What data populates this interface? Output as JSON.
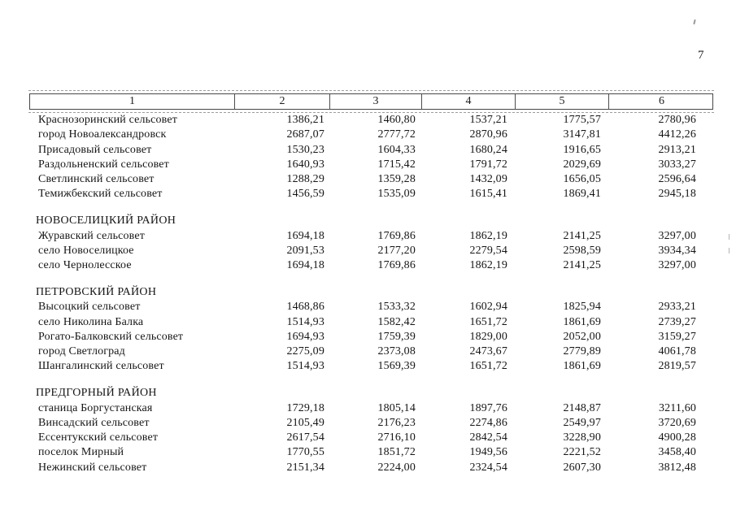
{
  "page": {
    "number": "7"
  },
  "table": {
    "header": {
      "columns": [
        "1",
        "2",
        "3",
        "4",
        "5",
        "6"
      ]
    },
    "sections": [
      {
        "title": "",
        "rows": [
          {
            "name": "Краснозоринский сельсовет",
            "values": [
              "1386,21",
              "1460,80",
              "1537,21",
              "1775,57",
              "2780,96"
            ]
          },
          {
            "name": "город Новоалександровск",
            "values": [
              "2687,07",
              "2777,72",
              "2870,96",
              "3147,81",
              "4412,26"
            ]
          },
          {
            "name": "Присадовый сельсовет",
            "values": [
              "1530,23",
              "1604,33",
              "1680,24",
              "1916,65",
              "2913,21"
            ]
          },
          {
            "name": "Раздольненский сельсовет",
            "values": [
              "1640,93",
              "1715,42",
              "1791,72",
              "2029,69",
              "3033,27"
            ]
          },
          {
            "name": "Светлинский сельсовет",
            "values": [
              "1288,29",
              "1359,28",
              "1432,09",
              "1656,05",
              "2596,64"
            ]
          },
          {
            "name": "Темижбекский сельсовет",
            "values": [
              "1456,59",
              "1535,09",
              "1615,41",
              "1869,41",
              "2945,18"
            ]
          }
        ]
      },
      {
        "title": "НОВОСЕЛИЦКИЙ РАЙОН",
        "rows": [
          {
            "name": "Журавский сельсовет",
            "values": [
              "1694,18",
              "1769,86",
              "1862,19",
              "2141,25",
              "3297,00"
            ]
          },
          {
            "name": "село Новоселицкое",
            "values": [
              "2091,53",
              "2177,20",
              "2279,54",
              "2598,59",
              "3934,34"
            ]
          },
          {
            "name": "село Чернолесское",
            "values": [
              "1694,18",
              "1769,86",
              "1862,19",
              "2141,25",
              "3297,00"
            ]
          }
        ]
      },
      {
        "title": "ПЕТРОВСКИЙ РАЙОН",
        "rows": [
          {
            "name": "Высоцкий сельсовет",
            "values": [
              "1468,86",
              "1533,32",
              "1602,94",
              "1825,94",
              "2933,21"
            ]
          },
          {
            "name": "село Николина Балка",
            "values": [
              "1514,93",
              "1582,42",
              "1651,72",
              "1861,69",
              "2739,27"
            ]
          },
          {
            "name": "Рогато-Балковский сельсовет",
            "values": [
              "1694,93",
              "1759,39",
              "1829,00",
              "2052,00",
              "3159,27"
            ]
          },
          {
            "name": "город Светлоград",
            "values": [
              "2275,09",
              "2373,08",
              "2473,67",
              "2779,89",
              "4061,78"
            ]
          },
          {
            "name": "Шангалинский сельсовет",
            "values": [
              "1514,93",
              "1569,39",
              "1651,72",
              "1861,69",
              "2819,57"
            ]
          }
        ]
      },
      {
        "title": "ПРЕДГОРНЫЙ РАЙОН",
        "rows": [
          {
            "name": "станица Боргустанская",
            "values": [
              "1729,18",
              "1805,14",
              "1897,76",
              "2148,87",
              "3211,60"
            ]
          },
          {
            "name": "Винсадский сельсовет",
            "values": [
              "2105,49",
              "2176,23",
              "2274,86",
              "2549,97",
              "3720,69"
            ]
          },
          {
            "name": "Ессентукский сельсовет",
            "values": [
              "2617,54",
              "2716,10",
              "2842,54",
              "3228,90",
              "4900,28"
            ]
          },
          {
            "name": "поселок Мирный",
            "values": [
              "1770,55",
              "1851,72",
              "1949,56",
              "2221,52",
              "3458,40"
            ]
          },
          {
            "name": "Нежинский сельсовет",
            "values": [
              "2151,34",
              "2224,00",
              "2324,54",
              "2607,30",
              "3812,48"
            ]
          }
        ]
      }
    ]
  }
}
